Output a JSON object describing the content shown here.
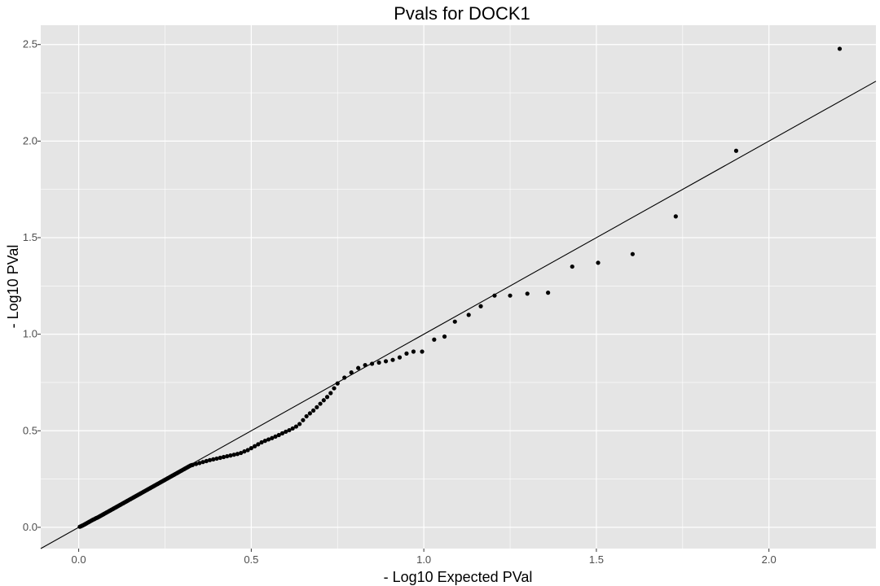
{
  "chart_data": {
    "type": "scatter",
    "title": "Pvals for DOCK1",
    "xlabel": "- Log10 Expected PVal",
    "ylabel": "- Log10 PVal",
    "xlim": [
      -0.11,
      2.31
    ],
    "ylim": [
      -0.11,
      2.6
    ],
    "x_ticks": [
      0.0,
      0.5,
      1.0,
      1.5,
      2.0
    ],
    "x_tick_labels": [
      "0.0",
      "0.5",
      "1.0",
      "1.5",
      "2.0"
    ],
    "y_ticks": [
      0.0,
      0.5,
      1.0,
      1.5,
      2.0,
      2.5
    ],
    "y_tick_labels": [
      "0.0",
      "0.5",
      "1.0",
      "1.5",
      "2.0",
      "2.5"
    ],
    "grid": true,
    "reference_line": {
      "slope": 1,
      "intercept": 0
    },
    "colors": {
      "panel": "#e5e5e5",
      "grid": "#ffffff",
      "point": "#000000",
      "line": "#000000"
    },
    "points": [
      [
        0.003,
        0.003
      ],
      [
        0.006,
        0.005
      ],
      [
        0.009,
        0.008
      ],
      [
        0.012,
        0.01
      ],
      [
        0.015,
        0.013
      ],
      [
        0.018,
        0.016
      ],
      [
        0.021,
        0.019
      ],
      [
        0.024,
        0.022
      ],
      [
        0.027,
        0.025
      ],
      [
        0.03,
        0.028
      ],
      [
        0.033,
        0.031
      ],
      [
        0.036,
        0.034
      ],
      [
        0.039,
        0.037
      ],
      [
        0.042,
        0.04
      ],
      [
        0.045,
        0.042
      ],
      [
        0.048,
        0.045
      ],
      [
        0.051,
        0.048
      ],
      [
        0.054,
        0.05
      ],
      [
        0.057,
        0.053
      ],
      [
        0.06,
        0.056
      ],
      [
        0.063,
        0.059
      ],
      [
        0.066,
        0.062
      ],
      [
        0.069,
        0.065
      ],
      [
        0.072,
        0.068
      ],
      [
        0.075,
        0.071
      ],
      [
        0.078,
        0.074
      ],
      [
        0.081,
        0.077
      ],
      [
        0.084,
        0.08
      ],
      [
        0.087,
        0.083
      ],
      [
        0.09,
        0.086
      ],
      [
        0.093,
        0.089
      ],
      [
        0.096,
        0.092
      ],
      [
        0.099,
        0.095
      ],
      [
        0.102,
        0.098
      ],
      [
        0.105,
        0.101
      ],
      [
        0.108,
        0.104
      ],
      [
        0.111,
        0.107
      ],
      [
        0.114,
        0.11
      ],
      [
        0.117,
        0.113
      ],
      [
        0.12,
        0.116
      ],
      [
        0.123,
        0.119
      ],
      [
        0.126,
        0.122
      ],
      [
        0.129,
        0.125
      ],
      [
        0.132,
        0.128
      ],
      [
        0.135,
        0.131
      ],
      [
        0.138,
        0.134
      ],
      [
        0.141,
        0.137
      ],
      [
        0.144,
        0.14
      ],
      [
        0.147,
        0.143
      ],
      [
        0.15,
        0.146
      ],
      [
        0.153,
        0.149
      ],
      [
        0.156,
        0.152
      ],
      [
        0.159,
        0.155
      ],
      [
        0.162,
        0.158
      ],
      [
        0.165,
        0.161
      ],
      [
        0.168,
        0.164
      ],
      [
        0.171,
        0.167
      ],
      [
        0.174,
        0.17
      ],
      [
        0.177,
        0.173
      ],
      [
        0.18,
        0.176
      ],
      [
        0.183,
        0.179
      ],
      [
        0.186,
        0.182
      ],
      [
        0.189,
        0.185
      ],
      [
        0.192,
        0.188
      ],
      [
        0.195,
        0.191
      ],
      [
        0.198,
        0.194
      ],
      [
        0.201,
        0.197
      ],
      [
        0.204,
        0.2
      ],
      [
        0.207,
        0.203
      ],
      [
        0.21,
        0.206
      ],
      [
        0.213,
        0.209
      ],
      [
        0.216,
        0.212
      ],
      [
        0.219,
        0.215
      ],
      [
        0.222,
        0.218
      ],
      [
        0.225,
        0.221
      ],
      [
        0.228,
        0.224
      ],
      [
        0.231,
        0.227
      ],
      [
        0.234,
        0.23
      ],
      [
        0.237,
        0.233
      ],
      [
        0.24,
        0.236
      ],
      [
        0.243,
        0.239
      ],
      [
        0.246,
        0.242
      ],
      [
        0.249,
        0.245
      ],
      [
        0.252,
        0.248
      ],
      [
        0.255,
        0.251
      ],
      [
        0.258,
        0.254
      ],
      [
        0.261,
        0.257
      ],
      [
        0.264,
        0.26
      ],
      [
        0.267,
        0.263
      ],
      [
        0.27,
        0.266
      ],
      [
        0.273,
        0.269
      ],
      [
        0.276,
        0.272
      ],
      [
        0.279,
        0.275
      ],
      [
        0.282,
        0.278
      ],
      [
        0.285,
        0.281
      ],
      [
        0.288,
        0.284
      ],
      [
        0.291,
        0.287
      ],
      [
        0.294,
        0.29
      ],
      [
        0.297,
        0.293
      ],
      [
        0.3,
        0.296
      ],
      [
        0.303,
        0.299
      ],
      [
        0.306,
        0.302
      ],
      [
        0.309,
        0.305
      ],
      [
        0.312,
        0.308
      ],
      [
        0.315,
        0.311
      ],
      [
        0.318,
        0.314
      ],
      [
        0.321,
        0.317
      ],
      [
        0.324,
        0.32
      ],
      [
        0.327,
        0.322
      ],
      [
        0.33,
        0.323
      ],
      [
        0.34,
        0.328
      ],
      [
        0.35,
        0.333
      ],
      [
        0.36,
        0.338
      ],
      [
        0.37,
        0.343
      ],
      [
        0.38,
        0.348
      ],
      [
        0.39,
        0.352
      ],
      [
        0.4,
        0.356
      ],
      [
        0.41,
        0.36
      ],
      [
        0.42,
        0.364
      ],
      [
        0.43,
        0.368
      ],
      [
        0.44,
        0.372
      ],
      [
        0.45,
        0.376
      ],
      [
        0.46,
        0.38
      ],
      [
        0.47,
        0.385
      ],
      [
        0.48,
        0.393
      ],
      [
        0.49,
        0.4
      ],
      [
        0.5,
        0.41
      ],
      [
        0.51,
        0.42
      ],
      [
        0.52,
        0.43
      ],
      [
        0.53,
        0.44
      ],
      [
        0.54,
        0.448
      ],
      [
        0.55,
        0.455
      ],
      [
        0.56,
        0.462
      ],
      [
        0.57,
        0.47
      ],
      [
        0.58,
        0.478
      ],
      [
        0.59,
        0.487
      ],
      [
        0.6,
        0.495
      ],
      [
        0.61,
        0.503
      ],
      [
        0.62,
        0.512
      ],
      [
        0.63,
        0.522
      ],
      [
        0.64,
        0.535
      ],
      [
        0.65,
        0.555
      ],
      [
        0.66,
        0.575
      ],
      [
        0.67,
        0.59
      ],
      [
        0.68,
        0.605
      ],
      [
        0.69,
        0.622
      ],
      [
        0.7,
        0.64
      ],
      [
        0.71,
        0.658
      ],
      [
        0.72,
        0.675
      ],
      [
        0.73,
        0.695
      ],
      [
        0.74,
        0.72
      ],
      [
        0.75,
        0.745
      ],
      [
        0.77,
        0.775
      ],
      [
        0.79,
        0.802
      ],
      [
        0.81,
        0.825
      ],
      [
        0.83,
        0.84
      ],
      [
        0.85,
        0.847
      ],
      [
        0.87,
        0.853
      ],
      [
        0.89,
        0.86
      ],
      [
        0.91,
        0.867
      ],
      [
        0.93,
        0.88
      ],
      [
        0.95,
        0.9
      ],
      [
        0.97,
        0.91
      ],
      [
        0.995,
        0.91
      ],
      [
        1.03,
        0.972
      ],
      [
        1.06,
        0.988
      ],
      [
        1.09,
        1.065
      ],
      [
        1.13,
        1.1
      ],
      [
        1.165,
        1.145
      ],
      [
        1.205,
        1.2
      ],
      [
        1.25,
        1.2
      ],
      [
        1.3,
        1.21
      ],
      [
        1.36,
        1.215
      ],
      [
        1.43,
        1.35
      ],
      [
        1.505,
        1.37
      ],
      [
        1.605,
        1.415
      ],
      [
        1.73,
        1.61
      ],
      [
        1.905,
        1.95
      ],
      [
        2.205,
        2.478
      ]
    ]
  }
}
